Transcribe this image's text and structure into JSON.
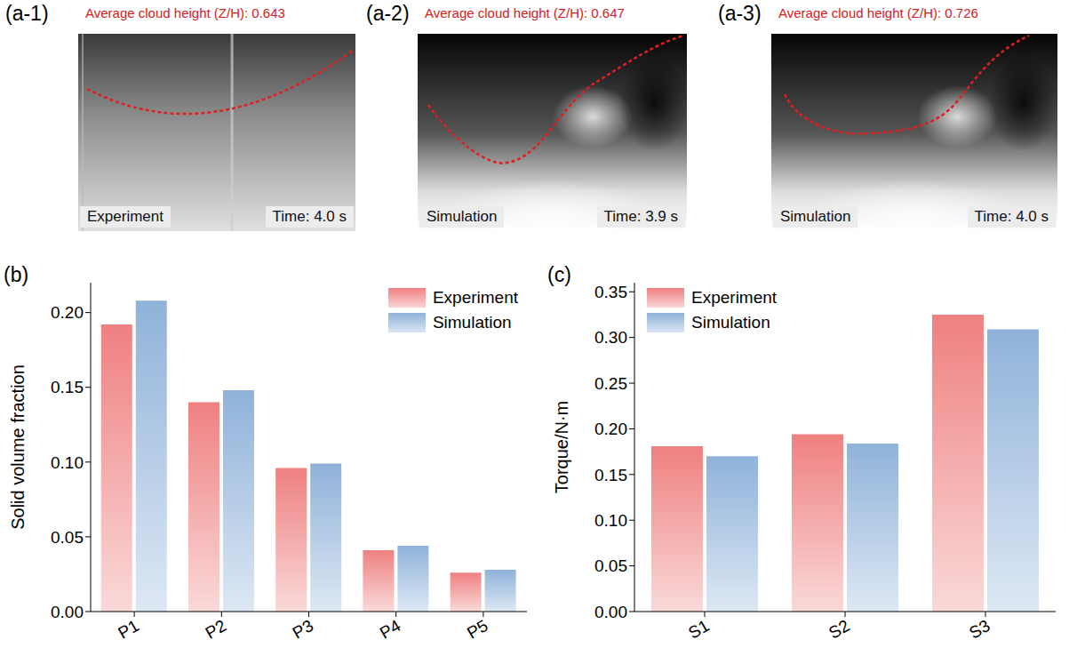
{
  "panels": [
    {
      "label": "(a-1)",
      "title": "Average cloud height (Z/H): 0.643",
      "source": "Experiment",
      "time": "Time: 4.0 s"
    },
    {
      "label": "(a-2)",
      "title": "Average cloud height (Z/H): 0.647",
      "source": "Simulation",
      "time": "Time: 3.9 s"
    },
    {
      "label": "(a-3)",
      "title": "Average cloud height (Z/H): 0.726",
      "source": "Simulation",
      "time": "Time: 4.0 s"
    }
  ],
  "chart_data": [
    {
      "label": "(b)",
      "type": "bar",
      "y_label": "Solid volume fraction",
      "categories": [
        "P1",
        "P2",
        "P3",
        "P4",
        "P5"
      ],
      "series": [
        {
          "name": "Experiment",
          "color": "#ef8080",
          "values": [
            0.192,
            0.14,
            0.096,
            0.041,
            0.026
          ]
        },
        {
          "name": "Simulation",
          "color": "#8fb2da",
          "values": [
            0.208,
            0.148,
            0.099,
            0.044,
            0.028
          ]
        }
      ],
      "ylim": [
        0,
        0.22
      ],
      "yticks": [
        {
          "value": 0,
          "label": "0.00"
        },
        0.05,
        {
          "value": 0.1,
          "label": "0.10"
        },
        0.15,
        {
          "value": 0.2,
          "label": "0.20"
        }
      ],
      "legend": "top-right"
    },
    {
      "label": "(c)",
      "type": "bar",
      "y_label": "Torque/N·m",
      "categories": [
        "S1",
        "S2",
        "S3"
      ],
      "series": [
        {
          "name": "Experiment",
          "color": "#ef8080",
          "values": [
            0.181,
            0.194,
            0.325
          ]
        },
        {
          "name": "Simulation",
          "color": "#8fb2da",
          "values": [
            0.17,
            0.184,
            0.309
          ]
        }
      ],
      "ylim": [
        0,
        0.36
      ],
      "yticks": [
        {
          "value": 0,
          "label": "0.00"
        },
        0.05,
        {
          "value": 0.1,
          "label": "0.10"
        },
        0.15,
        {
          "value": 0.2,
          "label": "0.20"
        },
        0.25,
        {
          "value": 0.3,
          "label": "0.30"
        },
        0.35
      ],
      "legend": "top-left"
    }
  ]
}
